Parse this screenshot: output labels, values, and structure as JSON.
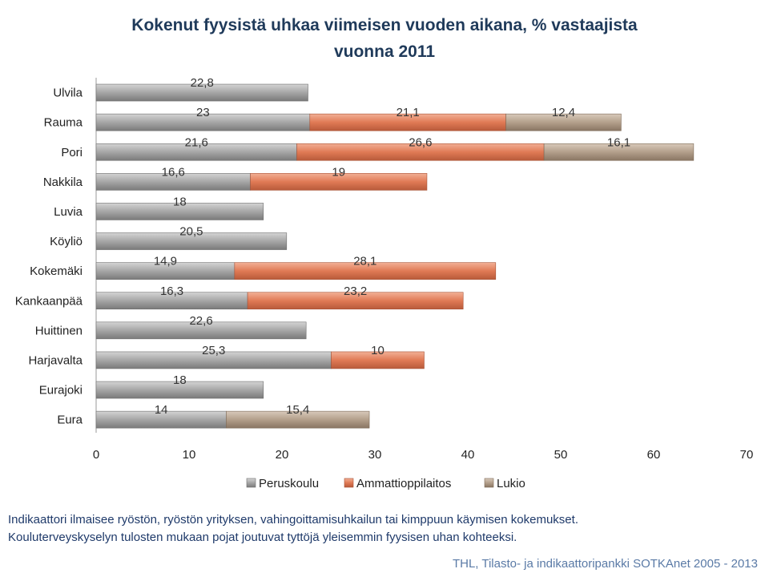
{
  "chart_data": {
    "type": "bar",
    "orientation": "horizontal",
    "stacked": true,
    "title": "Kokenut fyysistä uhkaa viimeisen vuoden aikana, % vastaajista",
    "subtitle": "vuonna 2011",
    "categories": [
      "Ulvila",
      "Rauma",
      "Pori",
      "Nakkila",
      "Luvia",
      "Köyliö",
      "Kokemäki",
      "Kankaanpää",
      "Huittinen",
      "Harjavalta",
      "Eurajoki",
      "Eura"
    ],
    "series": [
      {
        "name": "Peruskoulu",
        "color": "#a3a3a3",
        "values": [
          22.8,
          23,
          21.6,
          16.6,
          18,
          20.5,
          14.9,
          16.3,
          22.6,
          25.3,
          18,
          14
        ]
      },
      {
        "name": "Ammattioppilaitos",
        "color": "#e3805e",
        "values": [
          null,
          21.1,
          26.6,
          19,
          null,
          null,
          28.1,
          23.2,
          null,
          10,
          null,
          null
        ]
      },
      {
        "name": "Lukio",
        "color": "#b8a592",
        "values": [
          null,
          12.4,
          16.1,
          null,
          null,
          null,
          null,
          null,
          null,
          null,
          null,
          15.4
        ]
      }
    ],
    "data_labels": [
      [
        "22,8"
      ],
      [
        "23",
        "21,1",
        "12,4"
      ],
      [
        "21,6",
        "26,6",
        "16,1"
      ],
      [
        "16,6",
        "19"
      ],
      [
        "18"
      ],
      [
        "20,5"
      ],
      [
        "14,9",
        "28,1"
      ],
      [
        "16,3",
        "23,2"
      ],
      [
        "22,6"
      ],
      [
        "25,3",
        "10"
      ],
      [
        "18"
      ],
      [
        "14",
        "15,4"
      ]
    ],
    "xlim": [
      0,
      70
    ],
    "xticks": [
      "0",
      "10",
      "20",
      "30",
      "40",
      "50",
      "60",
      "70"
    ],
    "grid": false,
    "legend_position": "bottom"
  },
  "notes": [
    "Indikaattori ilmaisee ryöstön, ryöstön yrityksen, vahingoittamisuhkailun tai kimppuun käymisen kokemukset.",
    "Kouluterveyskyselyn tulosten mukaan pojat joutuvat tyttöjä yleisemmin fyysisen uhan kohteeksi."
  ],
  "source": "THL, Tilasto- ja indikaattoripankki SOTKAnet 2005 - 2013"
}
